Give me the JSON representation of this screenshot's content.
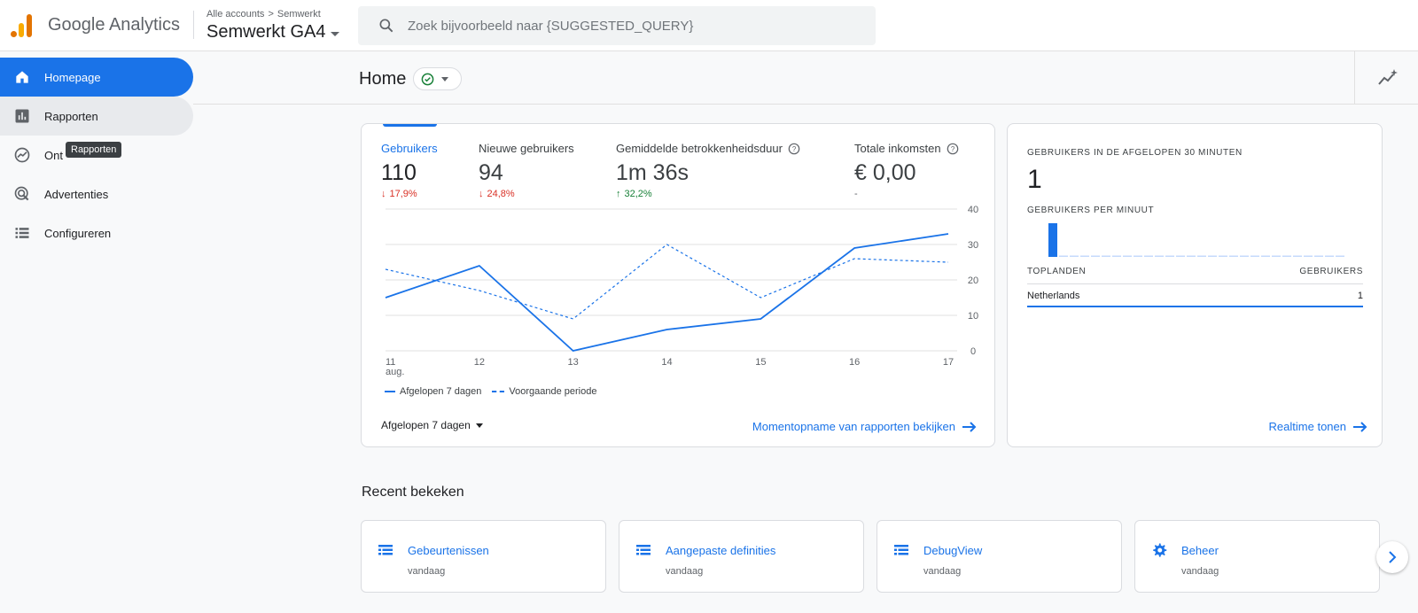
{
  "header": {
    "product_name": "Google Analytics",
    "breadcrumb": [
      "Alle accounts",
      "Semwerkt"
    ],
    "account_name": "Semwerkt GA4",
    "search_placeholder": "Zoek bijvoorbeeld naar {SUGGESTED_QUERY}"
  },
  "sidebar": {
    "items": [
      {
        "label": "Homepage",
        "icon": "home-icon"
      },
      {
        "label": "Rapporten",
        "icon": "bar-chart-icon"
      },
      {
        "label": "Ont",
        "icon": "explore-icon"
      },
      {
        "label": "Advertenties",
        "icon": "ads-target-icon"
      },
      {
        "label": "Configureren",
        "icon": "list-icon"
      }
    ],
    "tooltip": "Rapporten"
  },
  "page": {
    "title": "Home"
  },
  "metrics": [
    {
      "label": "Gebruikers",
      "value": "110",
      "change": "17,9%",
      "direction": "down"
    },
    {
      "label": "Nieuwe gebruikers",
      "value": "94",
      "change": "24,8%",
      "direction": "down"
    },
    {
      "label": "Gemiddelde betrokkenheidsduur",
      "value": "1m 36s",
      "change": "32,2%",
      "direction": "up"
    },
    {
      "label": "Totale inkomsten",
      "value": "€ 0,00",
      "change": "-",
      "direction": "flat"
    }
  ],
  "chart_data": {
    "type": "line",
    "x": [
      "11",
      "12",
      "13",
      "14",
      "15",
      "16",
      "17"
    ],
    "x_sublabel": "aug.",
    "ylim": [
      0,
      40
    ],
    "yticks": [
      0,
      10,
      20,
      30,
      40
    ],
    "series": [
      {
        "name": "Afgelopen 7 dagen",
        "style": "solid",
        "values": [
          15,
          24,
          0,
          6,
          9,
          29,
          33
        ]
      },
      {
        "name": "Voorgaande periode",
        "style": "dashed",
        "values": [
          23,
          17,
          9,
          30,
          15,
          26,
          25
        ]
      }
    ],
    "color": "#1a73e8",
    "grid": true,
    "legend_position": "bottom-left"
  },
  "main_card": {
    "period_label": "Afgelopen 7 dagen",
    "link_label": "Momentopname van rapporten bekijken"
  },
  "realtime": {
    "title": "GEBRUIKERS IN DE AFGELOPEN 30 MINUTEN",
    "count": "1",
    "per_minute_label": "GEBRUIKERS PER MINUUT",
    "per_minute_values": [
      1,
      0,
      0,
      0,
      0,
      0,
      0,
      0,
      0,
      0,
      0,
      0,
      0,
      0,
      0,
      0,
      0,
      0,
      0,
      0,
      0,
      0,
      0,
      0,
      0,
      0,
      0,
      0,
      0,
      0
    ],
    "col_country": "TOPLANDEN",
    "col_users": "GEBRUIKERS",
    "rows": [
      {
        "country": "Netherlands",
        "users": "1"
      }
    ],
    "link_label": "Realtime tonen"
  },
  "recent": {
    "title": "Recent bekeken",
    "items": [
      {
        "name": "Gebeurtenissen",
        "date": "vandaag",
        "icon": "table-icon"
      },
      {
        "name": "Aangepaste definities",
        "date": "vandaag",
        "icon": "table-icon"
      },
      {
        "name": "DebugView",
        "date": "vandaag",
        "icon": "table-icon"
      },
      {
        "name": "Beheer",
        "date": "vandaag",
        "icon": "gear-icon"
      }
    ]
  }
}
